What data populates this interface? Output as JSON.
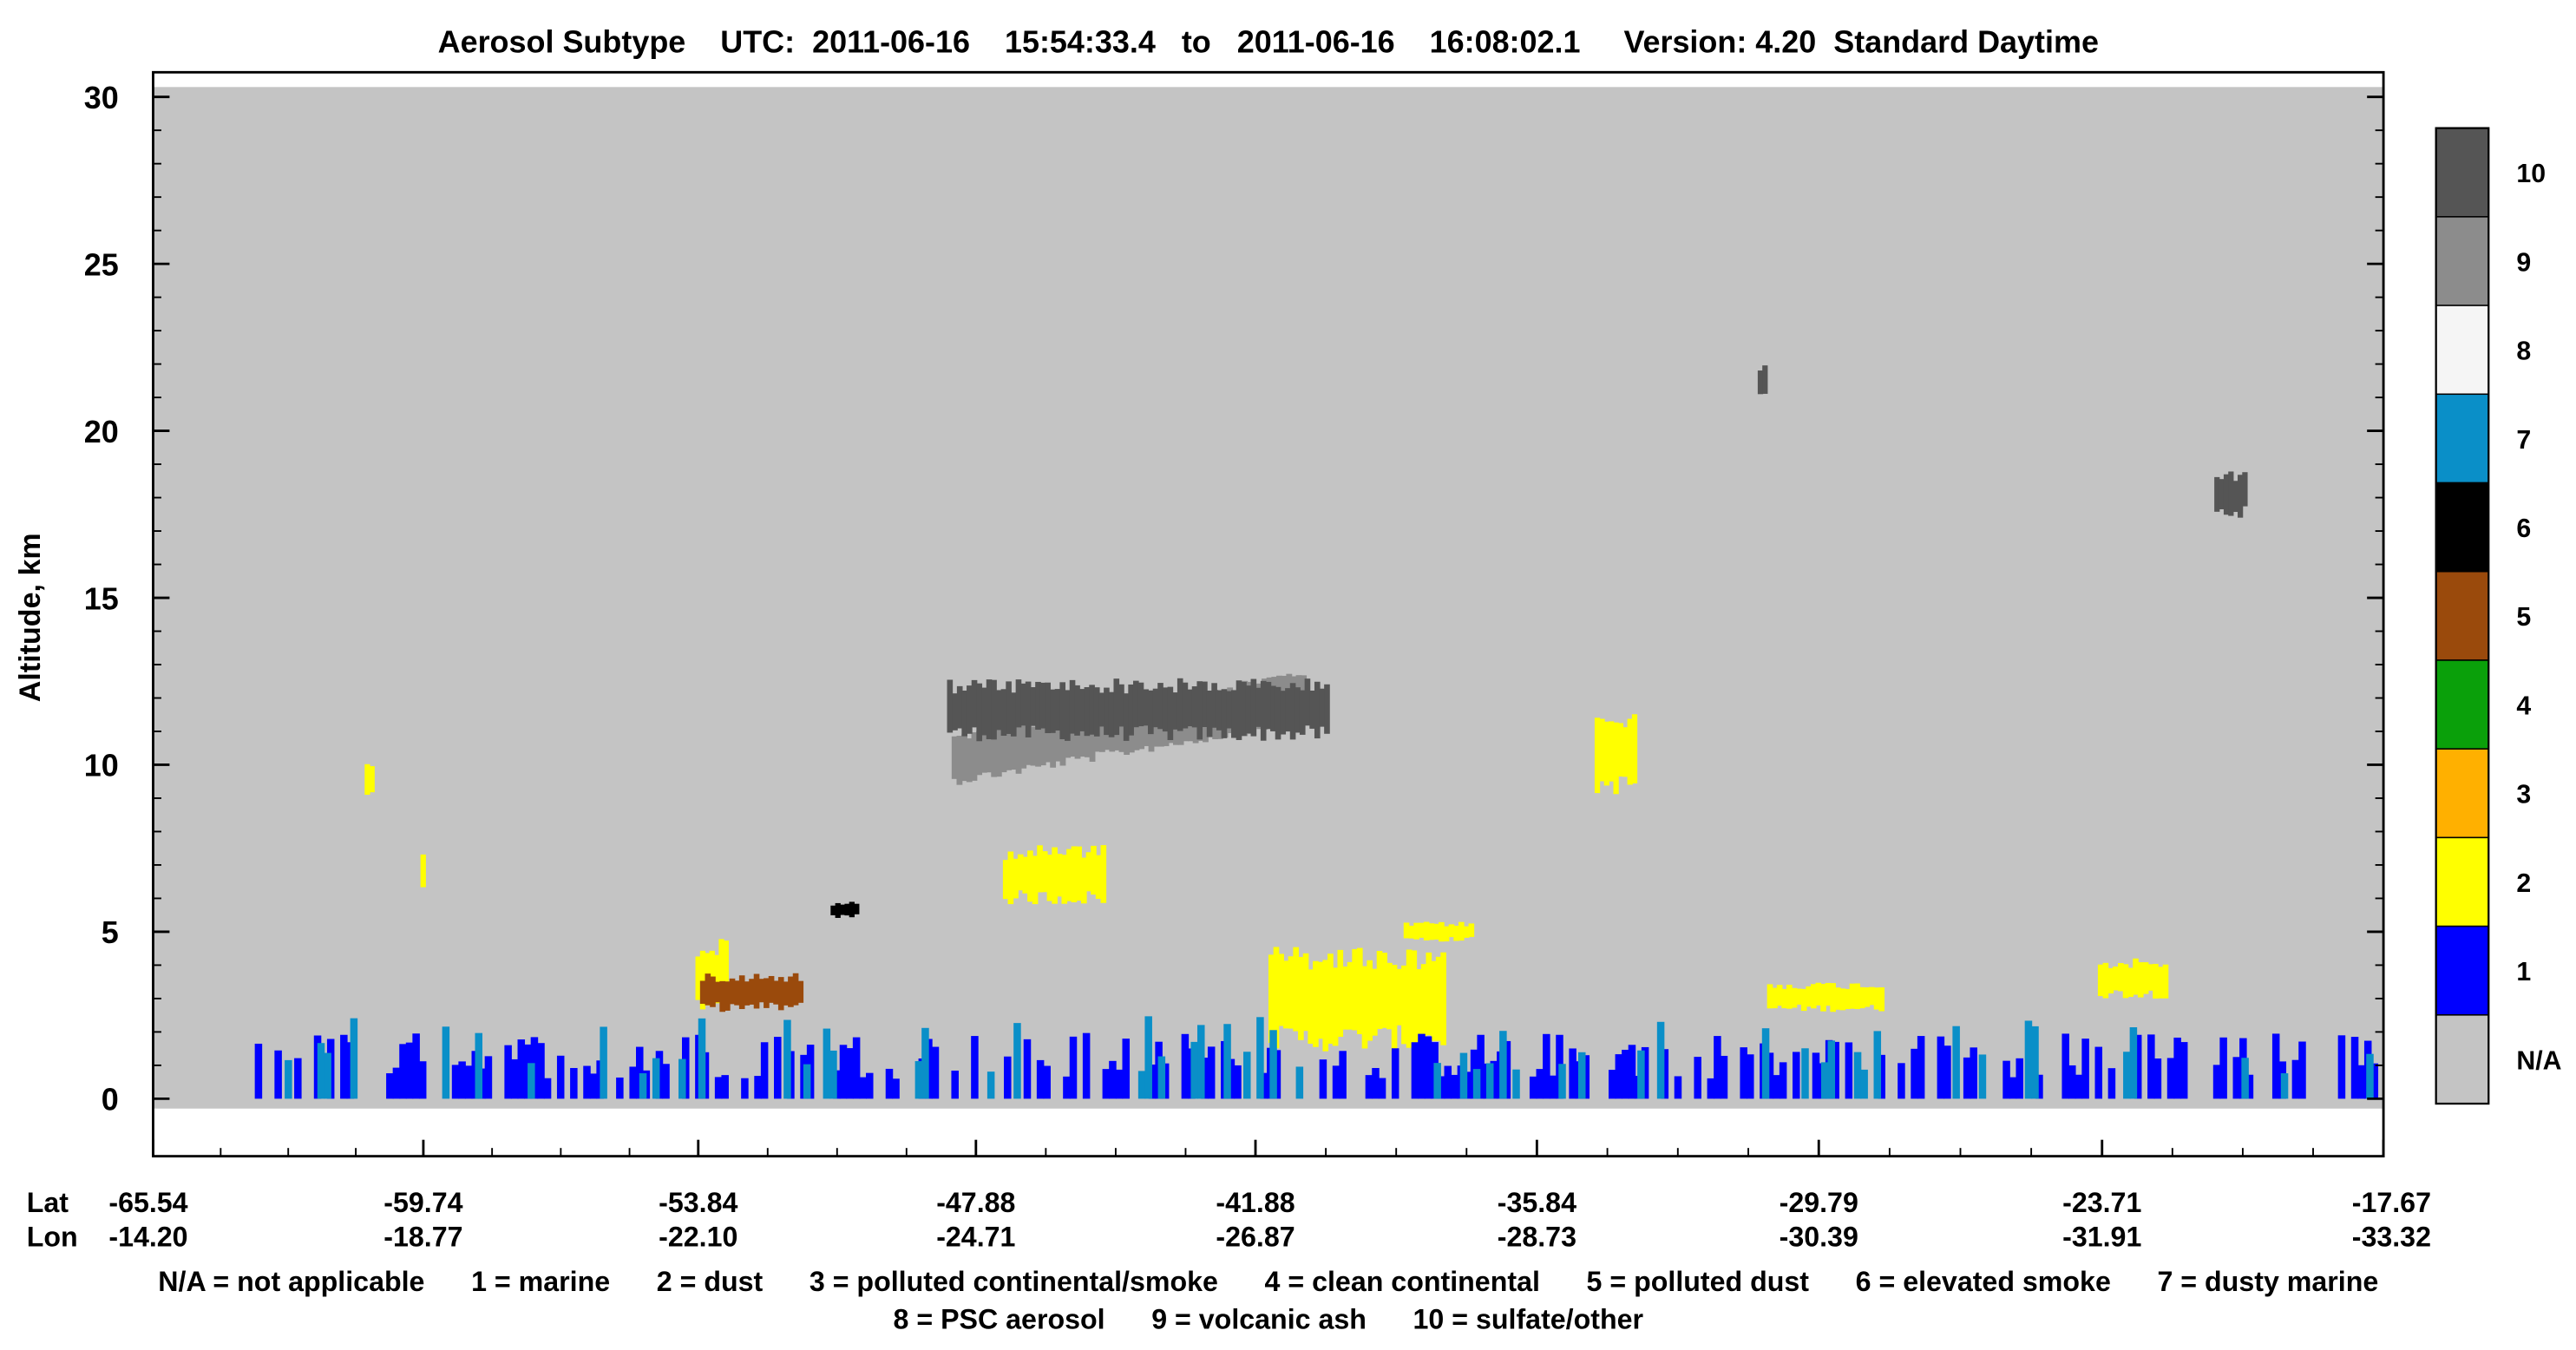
{
  "chart_data": {
    "type": "heatmap",
    "title": "Aerosol Subtype    UTC:  2011-06-16    15:54:33.4   to   2011-06-16    16:08:02.1     Version: 4.20  Standard Daytime",
    "ylabel": "Altitude, km",
    "ylim": [
      -0.4,
      30.4
    ],
    "yticks": [
      "30",
      "25",
      "20",
      "15",
      "10",
      "5",
      "0"
    ],
    "x_row_labels": [
      "Lat",
      "Lon"
    ],
    "lat_ticks": [
      "-65.54",
      "-59.74",
      "-53.84",
      "-47.88",
      "-41.88",
      "-35.84",
      "-29.79",
      "-23.71",
      "-17.67"
    ],
    "lon_ticks": [
      "-14.20",
      "-18.77",
      "-22.10",
      "-24.71",
      "-26.87",
      "-28.73",
      "-30.39",
      "-31.91",
      "-33.32"
    ],
    "colorbar": {
      "labels": [
        "10",
        "9",
        "8",
        "7",
        "6",
        "5",
        "4",
        "3",
        "2",
        "1",
        "N/A"
      ],
      "colors": [
        "#555555",
        "#8c8c8c",
        "#f5f5f5",
        "#0a8fc8",
        "#000000",
        "#9a4a0c",
        "#0aa00a",
        "#ffb000",
        "#ffff00",
        "#0000ff",
        "#c4c4c4"
      ]
    },
    "legend_lines": [
      "N/A = not applicable      1 = marine      2 = dust      3 = polluted continental/smoke      4 = clean continental      5 = polluted dust      6 = elevated smoke      7 = dusty marine",
      "8 = PSC aerosol      9 = volcanic ash      10 = sulfate/other"
    ],
    "features": [
      {
        "name": "volcanic ash plume",
        "class": 9,
        "lat": [
          -48.4,
          -40.8
        ],
        "alt": [
          9.5,
          12.8
        ]
      },
      {
        "name": "sulfate/other layer",
        "class": 10,
        "lat": [
          -48.5,
          -40.3
        ],
        "alt": [
          10.7,
          12.6
        ]
      },
      {
        "name": "sulfate/other 21.5 km",
        "class": 10,
        "lat": [
          -31.1,
          -30.9
        ],
        "alt": [
          20.9,
          22.1
        ]
      },
      {
        "name": "sulfate/other 18 km",
        "class": 10,
        "lat": [
          -21.3,
          -20.6
        ],
        "alt": [
          17.4,
          18.8
        ]
      },
      {
        "name": "dust 9.5 km",
        "class": 2,
        "lat": [
          -61.0,
          -60.8
        ],
        "alt": [
          8.9,
          10.3
        ]
      },
      {
        "name": "dust 7 km",
        "class": 2,
        "lat": [
          -59.8,
          -59.7
        ],
        "alt": [
          6.0,
          7.6
        ]
      },
      {
        "name": "dust 4 km",
        "class": 2,
        "lat": [
          -53.9,
          -53.2
        ],
        "alt": [
          2.6,
          4.8
        ]
      },
      {
        "name": "dust 6.5 km",
        "class": 2,
        "lat": [
          -47.3,
          -45.1
        ],
        "alt": [
          5.8,
          7.6
        ]
      },
      {
        "name": "dust 5.5 km",
        "class": 2,
        "lat": [
          -38.7,
          -37.2
        ],
        "alt": [
          4.7,
          5.3
        ]
      },
      {
        "name": "dust 10.5 km",
        "class": 2,
        "lat": [
          -34.6,
          -33.7
        ],
        "alt": [
          9.1,
          11.6
        ]
      },
      {
        "name": "dust 3 km",
        "class": 2,
        "lat": [
          -30.9,
          -28.4
        ],
        "alt": [
          2.6,
          3.5
        ]
      },
      {
        "name": "dust 3.5 km",
        "class": 2,
        "lat": [
          -23.8,
          -22.3
        ],
        "alt": [
          3.0,
          4.2
        ]
      },
      {
        "name": "dust 2.5 km",
        "class": 2,
        "lat": [
          -41.6,
          -37.8
        ],
        "alt": [
          1.4,
          4.6
        ]
      },
      {
        "name": "elevated smoke 5.5 km",
        "class": 6,
        "lat": [
          -51.0,
          -50.4
        ],
        "alt": [
          5.4,
          5.9
        ]
      },
      {
        "name": "polluted dust 3 km",
        "class": 5,
        "lat": [
          -53.8,
          -51.6
        ],
        "alt": [
          2.6,
          3.8
        ]
      },
      {
        "name": "marine boundary layer",
        "class": 1,
        "lat": [
          -63.5,
          -17.8
        ],
        "alt": [
          0.0,
          2.0
        ]
      },
      {
        "name": "dusty marine boundary layer",
        "class": 7,
        "lat": [
          -63.0,
          -17.9
        ],
        "alt": [
          0.0,
          2.5
        ]
      }
    ]
  }
}
